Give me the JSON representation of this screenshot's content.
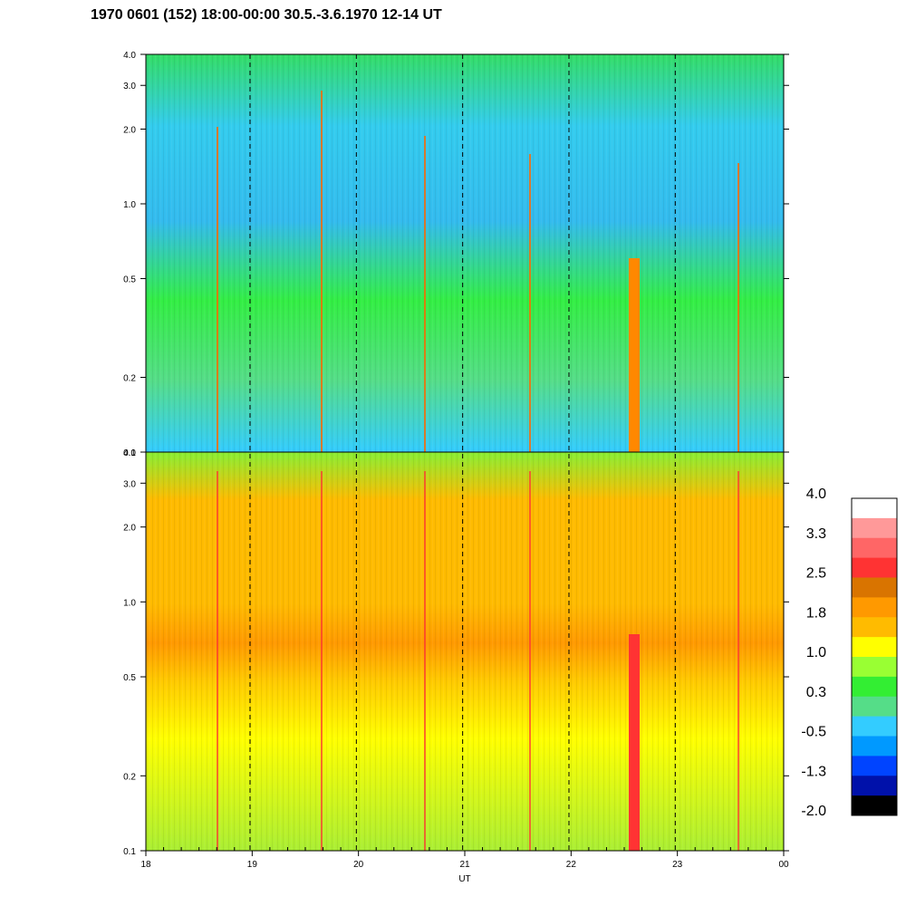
{
  "chart_data": {
    "type": "heatmap",
    "title": "1970 0601 (152) 18:00-00:00 30.5.-3.6.1970  12-14 UT",
    "xlabel": "UT",
    "x_ticks": [
      "18",
      "19",
      "20",
      "21",
      "22",
      "23",
      "00"
    ],
    "xlim": [
      18,
      24
    ],
    "y_scale": "log",
    "panels": [
      {
        "name": "upper",
        "ylim": [
          0.1,
          4.0
        ],
        "y_ticks": [
          {
            "value": 0.1,
            "label": "0.1"
          },
          {
            "value": 0.2,
            "label": "0.2"
          },
          {
            "value": 0.5,
            "label": "0.5"
          },
          {
            "value": 1.0,
            "label": "1.0"
          },
          {
            "value": 2.0,
            "label": "2.0"
          },
          {
            "value": 3.0,
            "label": "3.0"
          },
          {
            "value": 4.0,
            "label": "4.0"
          }
        ]
      },
      {
        "name": "lower",
        "ylim": [
          0.1,
          4.0
        ],
        "y_ticks": [
          {
            "value": 0.1,
            "label": "0.1"
          },
          {
            "value": 0.2,
            "label": "0.2"
          },
          {
            "value": 0.5,
            "label": "0.5"
          },
          {
            "value": 1.0,
            "label": "1.0"
          },
          {
            "value": 2.0,
            "label": "2.0"
          },
          {
            "value": 3.0,
            "label": "3.0"
          },
          {
            "value": 4.0,
            "label": "4.0"
          }
        ]
      }
    ],
    "dashed_verticals": [
      18.98,
      19.98,
      20.98,
      21.98,
      22.98
    ],
    "colorbar": {
      "labels": [
        "4.0",
        "3.3",
        "2.5",
        "1.8",
        "1.0",
        "0.3",
        "-0.5",
        "-1.3",
        "-2.0"
      ],
      "colors": [
        "#ffffff",
        "#ff9999",
        "#ff6666",
        "#ff3333",
        "#d97400",
        "#ff9900",
        "#ffbb00",
        "#ffff00",
        "#99ff33",
        "#33ee33",
        "#55dd88",
        "#33ccff",
        "#0099ff",
        "#0044ff",
        "#0011aa",
        "#000000"
      ]
    }
  }
}
